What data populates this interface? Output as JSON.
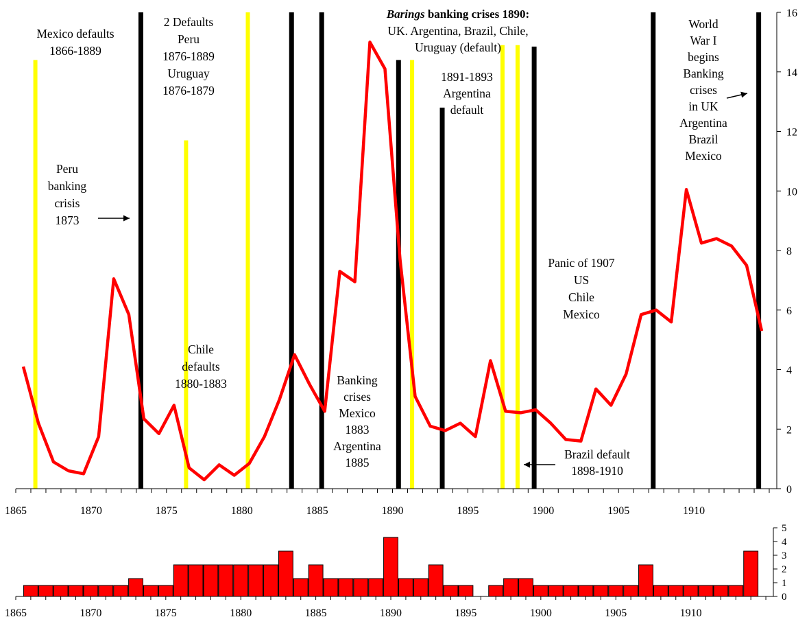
{
  "chart_data": [
    {
      "type": "line",
      "title": "",
      "xlabel": "",
      "ylabel": "",
      "xlim": [
        1865,
        1915.5
      ],
      "ylim": [
        0,
        16
      ],
      "x_ticks": [
        "1865",
        "1870",
        "1875",
        "1880",
        "1885",
        "1890",
        "1895",
        "1900",
        "1905",
        "1910"
      ],
      "y_ticks": [
        "0",
        "2",
        "4",
        "6",
        "8",
        "10",
        "12",
        "14",
        "16"
      ],
      "series": [
        {
          "color": "#ff0000",
          "x": [
            1865.5,
            1866.5,
            1867.5,
            1868.5,
            1869.5,
            1870.5,
            1871.5,
            1872.5,
            1873.5,
            1874.5,
            1875.5,
            1876.5,
            1877.5,
            1878.5,
            1879.5,
            1880.5,
            1881.5,
            1882.5,
            1883.5,
            1884.5,
            1885.5,
            1886.5,
            1887.5,
            1888.5,
            1889.5,
            1890.5,
            1891.5,
            1892.5,
            1893.5,
            1894.5,
            1895.5,
            1896.5,
            1897.5,
            1898.5,
            1899.5,
            1900.5,
            1901.5,
            1902.5,
            1903.5,
            1904.5,
            1905.5,
            1906.5,
            1907.5,
            1908.5,
            1909.5,
            1910.5,
            1911.5,
            1912.5,
            1913.5,
            1914.5
          ],
          "y": [
            4.1,
            2.2,
            0.9,
            0.6,
            0.5,
            1.75,
            7.05,
            5.85,
            2.35,
            1.85,
            2.8,
            0.7,
            0.3,
            0.8,
            0.45,
            0.85,
            1.75,
            3.0,
            4.5,
            3.5,
            2.6,
            7.3,
            6.95,
            15.0,
            14.1,
            7.7,
            3.1,
            2.1,
            1.95,
            2.2,
            1.75,
            4.3,
            2.6,
            2.55,
            2.65,
            2.2,
            1.65,
            1.6,
            3.35,
            2.8,
            3.85,
            5.85,
            6.0,
            5.6,
            10.05,
            8.25,
            8.4,
            8.15,
            7.5,
            5.3
          ]
        }
      ],
      "vertical_bars": {
        "black": [
          {
            "x": 1873.3,
            "top": 16
          },
          {
            "x": 1883.3,
            "top": 16
          },
          {
            "x": 1885.3,
            "top": 16
          },
          {
            "x": 1890.4,
            "top": 14.4
          },
          {
            "x": 1893.3,
            "top": 12.8
          },
          {
            "x": 1899.4,
            "top": 14.85
          },
          {
            "x": 1907.3,
            "top": 16
          },
          {
            "x": 1914.3,
            "top": 16
          }
        ],
        "yellow": [
          {
            "x": 1866.3,
            "top": 14.4
          },
          {
            "x": 1876.3,
            "top": 11.7
          },
          {
            "x": 1880.4,
            "top": 16
          },
          {
            "x": 1891.3,
            "top": 14.4
          },
          {
            "x": 1897.3,
            "top": 14.9
          },
          {
            "x": 1898.3,
            "top": 14.9
          }
        ]
      },
      "annotations": [
        {
          "lines": [
            "Mexico defaults",
            "1866-1889"
          ]
        },
        {
          "lines": [
            "2 Defaults",
            "Peru",
            "1876-1889",
            "Uruguay",
            "1876-1879"
          ]
        },
        {
          "lines": [
            "Peru",
            "banking",
            "crisis",
            "1873"
          ],
          "arrow": true
        },
        {
          "lines": [
            "Chile",
            "defaults",
            "1880-1883"
          ]
        },
        {
          "lines": [
            "Banking",
            "crises",
            "Mexico",
            "1883",
            "Argentina",
            "1885"
          ]
        },
        {
          "lines": [
            "UK. Argentina, Brazil, Chile,",
            "Uruguay (default)"
          ],
          "heading_italic": "Barings",
          "heading_bold": " banking crises 1890:"
        },
        {
          "lines": [
            "1891-1893",
            "Argentina",
            "default"
          ]
        },
        {
          "lines": [
            "Brazil default",
            "1898-1910"
          ],
          "arrow": true
        },
        {
          "lines": [
            "Panic of 1907",
            "US",
            "Chile",
            "Mexico"
          ]
        },
        {
          "lines": [
            "World",
            "War I",
            "begins",
            "Banking",
            "crises",
            "in UK",
            "Argentina",
            "Brazil",
            "Mexico"
          ],
          "arrow": true
        }
      ]
    },
    {
      "type": "bar",
      "title": "",
      "xlabel": "",
      "ylabel": "",
      "xlim": [
        1865,
        1915.5
      ],
      "ylim": [
        0,
        5
      ],
      "x_ticks": [
        "1865",
        "1870",
        "1875",
        "1880",
        "1885",
        "1890",
        "1895",
        "1900",
        "1905",
        "1910"
      ],
      "y_ticks": [
        "0",
        "1",
        "2",
        "3",
        "4",
        "5"
      ],
      "color": "#ff0000",
      "x": [
        1866,
        1867,
        1868,
        1869,
        1870,
        1871,
        1872,
        1873,
        1874,
        1875,
        1876,
        1877,
        1878,
        1879,
        1880,
        1881,
        1882,
        1883,
        1884,
        1885,
        1886,
        1887,
        1888,
        1889,
        1890,
        1891,
        1892,
        1893,
        1894,
        1895,
        1896,
        1897,
        1898,
        1899,
        1900,
        1901,
        1902,
        1903,
        1904,
        1905,
        1906,
        1907,
        1908,
        1909,
        1910,
        1911,
        1912,
        1913,
        1914
      ],
      "values": [
        1,
        1,
        1,
        1,
        1,
        1,
        1,
        2,
        1,
        1,
        3,
        3,
        3,
        3,
        3,
        3,
        3,
        4,
        2,
        3,
        2,
        2,
        2,
        2,
        5,
        2,
        2,
        3,
        1,
        1,
        0,
        1,
        2,
        2,
        1,
        1,
        1,
        1,
        1,
        1,
        1,
        3,
        1,
        1,
        1,
        1,
        1,
        1,
        4
      ]
    }
  ]
}
